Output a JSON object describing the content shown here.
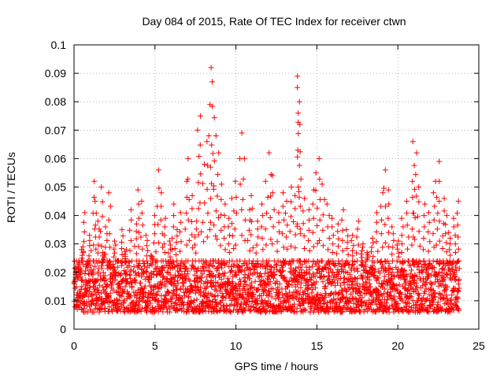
{
  "chart_data": {
    "type": "scatter",
    "title": "Day 084 of 2015, Rate Of TEC Index for receiver ctwn",
    "xlabel": "GPS time / hours",
    "ylabel": "ROTI / TECUs",
    "xlim": [
      0,
      25
    ],
    "ylim": [
      0,
      0.1
    ],
    "xticks": [
      "0",
      "5",
      "10",
      "15",
      "20",
      "25"
    ],
    "yticks": [
      "0",
      "0.01",
      "0.02",
      "0.03",
      "0.04",
      "0.05",
      "0.06",
      "0.07",
      "0.08",
      "0.09",
      "0.1"
    ],
    "grid": true,
    "marker": "plus",
    "color": "#ff0000",
    "series": [
      {
        "x_start": 0.0,
        "x_end": 23.8,
        "points": [
          [
            0.1,
            0.012
          ],
          [
            0.3,
            0.018
          ],
          [
            0.5,
            0.029
          ],
          [
            0.6,
            0.041
          ],
          [
            0.8,
            0.022
          ],
          [
            1.0,
            0.033
          ],
          [
            1.2,
            0.052
          ],
          [
            1.3,
            0.045
          ],
          [
            1.5,
            0.038
          ],
          [
            1.7,
            0.05
          ],
          [
            1.8,
            0.027
          ],
          [
            2.0,
            0.036
          ],
          [
            2.2,
            0.048
          ],
          [
            2.5,
            0.031
          ],
          [
            2.7,
            0.024
          ],
          [
            3.0,
            0.035
          ],
          [
            3.2,
            0.028
          ],
          [
            3.5,
            0.042
          ],
          [
            3.8,
            0.037
          ],
          [
            4.0,
            0.049
          ],
          [
            4.2,
            0.045
          ],
          [
            4.5,
            0.033
          ],
          [
            4.8,
            0.026
          ],
          [
            5.0,
            0.04
          ],
          [
            5.2,
            0.056
          ],
          [
            5.4,
            0.048
          ],
          [
            5.6,
            0.039
          ],
          [
            5.9,
            0.031
          ],
          [
            6.1,
            0.044
          ],
          [
            6.3,
            0.035
          ],
          [
            6.6,
            0.041
          ],
          [
            6.9,
            0.052
          ],
          [
            7.1,
            0.06
          ],
          [
            7.3,
            0.047
          ],
          [
            7.5,
            0.038
          ],
          [
            7.7,
            0.07
          ],
          [
            7.8,
            0.075
          ],
          [
            8.0,
            0.058
          ],
          [
            8.2,
            0.066
          ],
          [
            8.4,
            0.079
          ],
          [
            8.5,
            0.092
          ],
          [
            8.6,
            0.087
          ],
          [
            8.7,
            0.068
          ],
          [
            8.9,
            0.062
          ],
          [
            9.1,
            0.051
          ],
          [
            9.3,
            0.044
          ],
          [
            9.6,
            0.039
          ],
          [
            9.8,
            0.046
          ],
          [
            10.0,
            0.052
          ],
          [
            10.3,
            0.069
          ],
          [
            10.5,
            0.06
          ],
          [
            10.8,
            0.042
          ],
          [
            11.0,
            0.047
          ],
          [
            11.3,
            0.038
          ],
          [
            11.6,
            0.044
          ],
          [
            11.9,
            0.052
          ],
          [
            12.1,
            0.062
          ],
          [
            12.3,
            0.054
          ],
          [
            12.6,
            0.041
          ],
          [
            12.9,
            0.048
          ],
          [
            13.1,
            0.045
          ],
          [
            13.4,
            0.05
          ],
          [
            13.6,
            0.047
          ],
          [
            13.8,
            0.089
          ],
          [
            13.85,
            0.085
          ],
          [
            13.9,
            0.08
          ],
          [
            13.95,
            0.072
          ],
          [
            14.2,
            0.046
          ],
          [
            14.5,
            0.042
          ],
          [
            14.8,
            0.049
          ],
          [
            15.0,
            0.055
          ],
          [
            15.2,
            0.06
          ],
          [
            15.4,
            0.051
          ],
          [
            15.7,
            0.044
          ],
          [
            16.0,
            0.039
          ],
          [
            16.3,
            0.037
          ],
          [
            16.6,
            0.042
          ],
          [
            16.9,
            0.035
          ],
          [
            17.2,
            0.033
          ],
          [
            17.5,
            0.038
          ],
          [
            17.8,
            0.03
          ],
          [
            18.1,
            0.027
          ],
          [
            18.4,
            0.032
          ],
          [
            18.7,
            0.041
          ],
          [
            19.0,
            0.048
          ],
          [
            19.2,
            0.056
          ],
          [
            19.4,
            0.049
          ],
          [
            19.7,
            0.036
          ],
          [
            20.0,
            0.031
          ],
          [
            20.3,
            0.039
          ],
          [
            20.6,
            0.045
          ],
          [
            20.9,
            0.052
          ],
          [
            21.0,
            0.066
          ],
          [
            21.1,
            0.062
          ],
          [
            21.3,
            0.05
          ],
          [
            21.6,
            0.044
          ],
          [
            21.9,
            0.041
          ],
          [
            22.2,
            0.048
          ],
          [
            22.4,
            0.052
          ],
          [
            22.6,
            0.059
          ],
          [
            22.8,
            0.046
          ],
          [
            23.0,
            0.04
          ],
          [
            23.2,
            0.034
          ],
          [
            23.5,
            0.039
          ],
          [
            23.7,
            0.045
          ]
        ],
        "band": {
          "low": 0.006,
          "high": 0.024
        }
      }
    ]
  }
}
